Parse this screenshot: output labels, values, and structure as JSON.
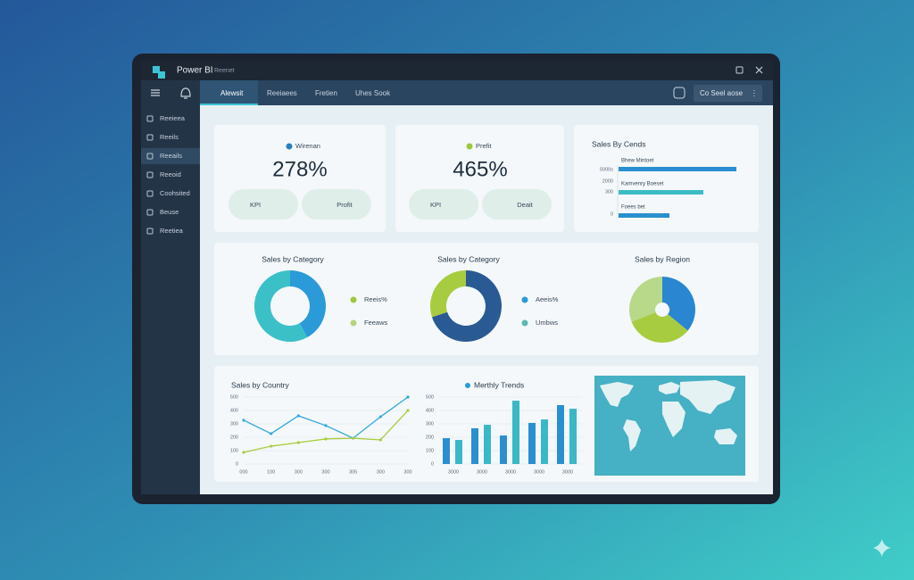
{
  "window": {
    "app": "Power BI",
    "subtitle": "Reenet"
  },
  "sidebar": {
    "items": [
      "Reeieea",
      "Reeils",
      "Reeails",
      "Reeoid",
      "Coohsited",
      "Beuse",
      "Reetiea"
    ],
    "active": 2
  },
  "nav": {
    "tabs": [
      "Alewsit",
      "Reeiaees",
      "Fretien",
      "Uhes Sook"
    ],
    "active": 0,
    "button": "Co Seel aose"
  },
  "kpis": [
    {
      "legend": "Wirenan",
      "legend_color": "#2a7fc0",
      "value": "278%",
      "pills": [
        "KPI",
        "Profit"
      ]
    },
    {
      "legend": "Prefit",
      "legend_color": "#9cc83c",
      "value": "465%",
      "pills": [
        "KPI",
        "Deait"
      ]
    }
  ],
  "charts": [
    {
      "type": "hbar",
      "title": "Sales By Cends",
      "categories": [
        "Bhew Mintoet",
        "Kamvenry Boeset",
        "Foees bet"
      ],
      "values": [
        132,
        95,
        57
      ],
      "colors": [
        "#2a8fd0",
        "#3cbcc4",
        "#2a8fd0"
      ],
      "xlim": [
        0,
        140
      ],
      "axis_labels": [
        "5000s",
        "2000",
        "300",
        "0"
      ]
    },
    {
      "type": "donut",
      "title": "Sales by Category",
      "values": [
        42,
        58
      ],
      "colors": [
        "#2a9bd8",
        "#3cc0c8"
      ],
      "legend": [
        {
          "name": "Reeis%",
          "color": "#9cc83c"
        },
        {
          "name": "Feeaws",
          "color": "#b4d67a"
        }
      ]
    },
    {
      "type": "donut",
      "title": "Sales by Category",
      "values": [
        70,
        30
      ],
      "colors": [
        "#2a5a94",
        "#a8cc40"
      ],
      "legend": [
        {
          "name": "Aeeis%",
          "color": "#2a9bd8"
        },
        {
          "name": "Umbws",
          "color": "#5cb8b0"
        }
      ]
    },
    {
      "type": "pie",
      "title": "Sales by Region",
      "values": [
        36,
        33,
        31
      ],
      "colors": [
        "#2a86d0",
        "#a8cc40",
        "#b8d88a"
      ]
    },
    {
      "type": "line",
      "title": "Sales by Country",
      "categories": [
        "000",
        "100",
        "300",
        "300",
        "305",
        "300",
        "300"
      ],
      "series": [
        {
          "color": "#34a8d8",
          "values": [
            327,
            227,
            360,
            287,
            193,
            353,
            500
          ]
        },
        {
          "color": "#a8cc40",
          "values": [
            87,
            133,
            160,
            187,
            193,
            180,
            400
          ]
        }
      ],
      "ylim": [
        0,
        500
      ],
      "yticks": [
        0,
        100,
        200,
        300,
        400,
        500
      ],
      "grid": true
    },
    {
      "type": "bar",
      "title": "Merthly Trends",
      "legend_color": "#2a9bd8",
      "categories": [
        "3000",
        "3000",
        "3000",
        "3000",
        "3000"
      ],
      "series": [
        {
          "color": "#2a8fd0",
          "values": [
            193,
            267,
            213,
            307,
            440
          ]
        },
        {
          "color": "#3ab8c8",
          "values": [
            180,
            293,
            473,
            333,
            413
          ]
        }
      ],
      "ylim": [
        0,
        500
      ],
      "yticks": [
        0,
        100,
        200,
        300,
        400,
        500
      ],
      "grid": true
    }
  ]
}
